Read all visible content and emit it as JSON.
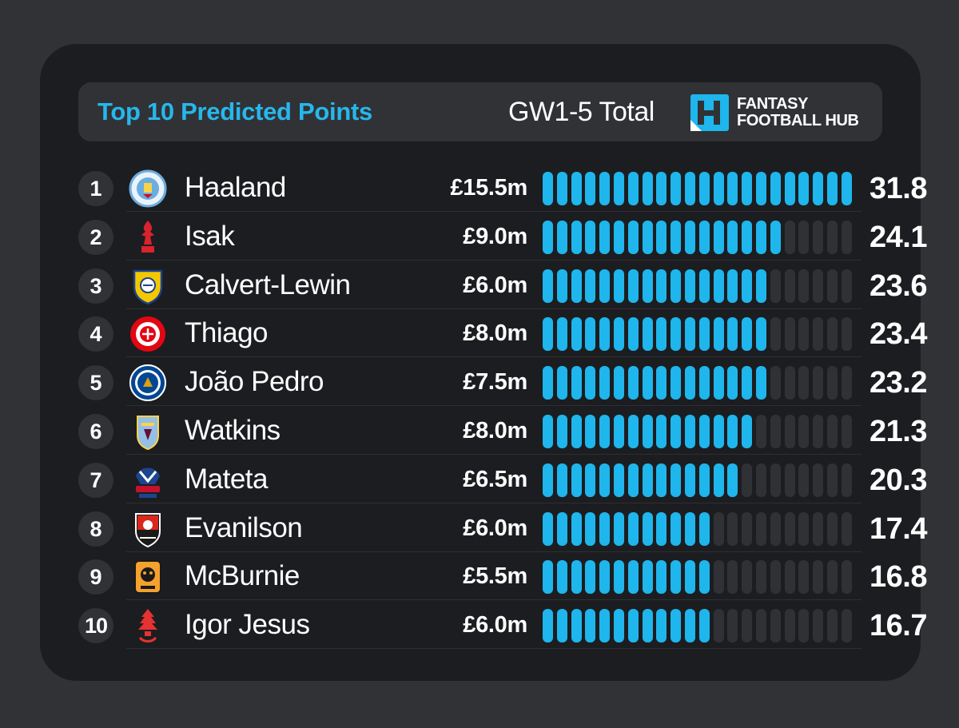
{
  "header": {
    "title": "Top 10 Predicted Points",
    "subtitle": "GW1-5 Total",
    "logo_line1": "FANTASY",
    "logo_line2": "FOOTBALL HUB",
    "logo_mark": "fantasy-football-hub-logo-icon"
  },
  "colors": {
    "accent": "#1eb6ec",
    "bar_empty": "#2f3135",
    "panel": "#1c1d20",
    "background": "#303236"
  },
  "chart_data": {
    "type": "bar",
    "segments_per_bar": 22,
    "xlim": [
      0,
      31.8
    ],
    "categories": [
      "Haaland",
      "Isak",
      "Calvert-Lewin",
      "Thiago",
      "João Pedro",
      "Watkins",
      "Mateta",
      "Evanilson",
      "McBurnie",
      "Igor Jesus"
    ],
    "values": [
      31.8,
      24.1,
      23.6,
      23.4,
      23.2,
      21.3,
      20.3,
      17.4,
      16.8,
      16.7
    ]
  },
  "rows": [
    {
      "rank": "1",
      "player": "Haaland",
      "price": "£15.5m",
      "points": "31.8",
      "crest": "man-city-crest-icon"
    },
    {
      "rank": "2",
      "player": "Isak",
      "price": "£9.0m",
      "points": "24.1",
      "crest": "liverpool-crest-icon"
    },
    {
      "rank": "3",
      "player": "Calvert-Lewin",
      "price": "£6.0m",
      "points": "23.6",
      "crest": "leeds-crest-icon"
    },
    {
      "rank": "4",
      "player": "Thiago",
      "price": "£8.0m",
      "points": "23.4",
      "crest": "brentford-crest-icon"
    },
    {
      "rank": "5",
      "player": "João Pedro",
      "price": "£7.5m",
      "points": "23.2",
      "crest": "chelsea-crest-icon"
    },
    {
      "rank": "6",
      "player": "Watkins",
      "price": "£8.0m",
      "points": "21.3",
      "crest": "aston-villa-crest-icon"
    },
    {
      "rank": "7",
      "player": "Mateta",
      "price": "£6.5m",
      "points": "20.3",
      "crest": "crystal-palace-crest-icon"
    },
    {
      "rank": "8",
      "player": "Evanilson",
      "price": "£6.0m",
      "points": "17.4",
      "crest": "bournemouth-crest-icon"
    },
    {
      "rank": "9",
      "player": "McBurnie",
      "price": "£5.5m",
      "points": "16.8",
      "crest": "hull-city-crest-icon"
    },
    {
      "rank": "10",
      "player": "Igor Jesus",
      "price": "£6.0m",
      "points": "16.7",
      "crest": "nottingham-forest-crest-icon"
    }
  ]
}
